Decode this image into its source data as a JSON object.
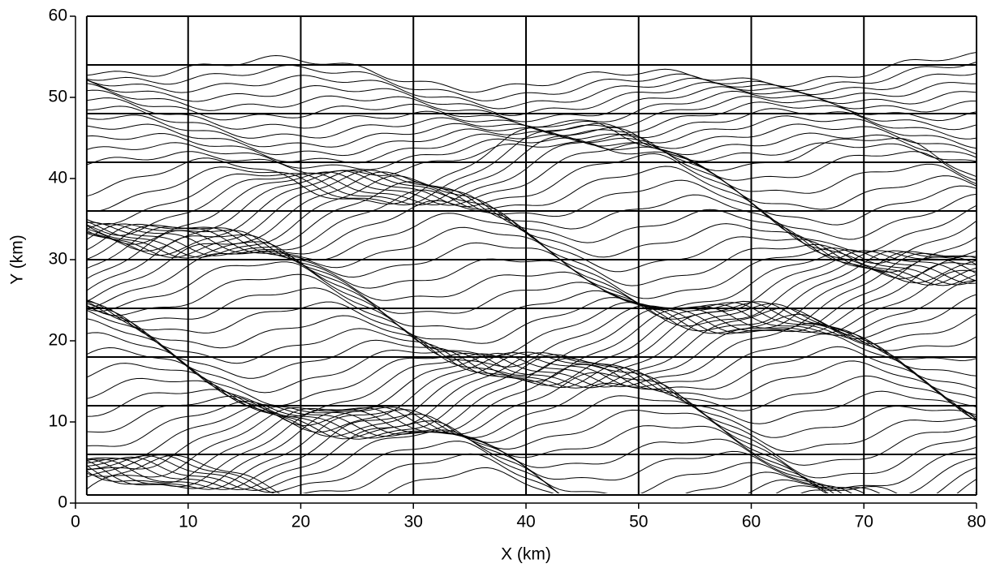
{
  "chart_data": {
    "type": "contour",
    "xlabel": "X (km)",
    "ylabel": "Y (km)",
    "xlim": [
      0,
      80
    ],
    "ylim": [
      0,
      60
    ],
    "xticks": [
      0,
      10,
      20,
      30,
      40,
      50,
      60,
      70,
      80
    ],
    "yticks": [
      0,
      10,
      20,
      30,
      40,
      50,
      60
    ],
    "grid_x": [
      1,
      10,
      20,
      30,
      40,
      50,
      60,
      70,
      80
    ],
    "grid_y": [
      1,
      6,
      12,
      18,
      24,
      30,
      36,
      42,
      48,
      54,
      60
    ],
    "color": "#000000"
  }
}
